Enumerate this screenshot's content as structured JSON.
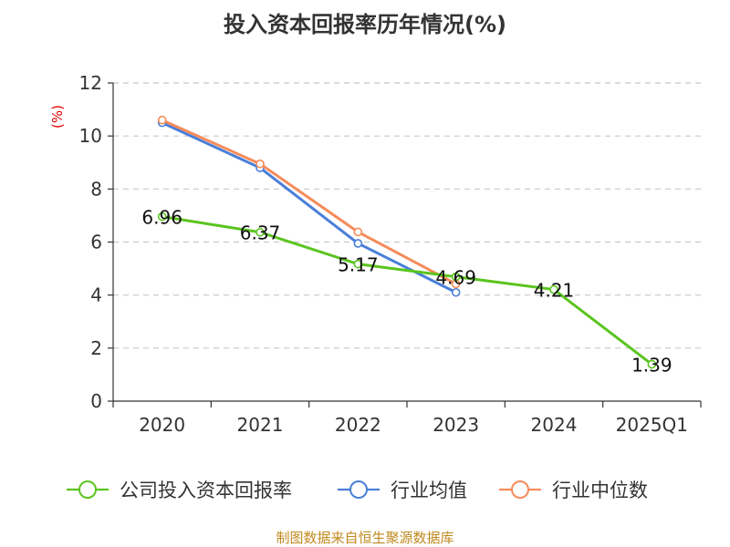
{
  "chart_data": {
    "type": "line",
    "title": "投入资本回报率历年情况(%)",
    "ylabel": "(%)",
    "categories": [
      "2020",
      "2021",
      "2022",
      "2023",
      "2024",
      "2025Q1"
    ],
    "ylim": [
      0,
      12
    ],
    "yticks": [
      0,
      2,
      4,
      6,
      8,
      10,
      12
    ],
    "grid": true,
    "legend_position": "bottom",
    "series": [
      {
        "name": "公司投入资本回报率",
        "color": "#5bc41f",
        "values": [
          6.96,
          6.37,
          5.17,
          4.69,
          4.21,
          1.39
        ],
        "labels": [
          "6.96",
          "6.37",
          "5.17",
          "4.69",
          "4.21",
          "1.39"
        ]
      },
      {
        "name": "行业均值",
        "color": "#4a7fd8",
        "values": [
          10.5,
          8.8,
          5.95,
          4.1,
          null,
          null
        ]
      },
      {
        "name": "行业中位数",
        "color": "#f58c5a",
        "values": [
          10.6,
          8.95,
          6.38,
          4.42,
          null,
          null
        ]
      }
    ]
  },
  "source": "制图数据来自恒生聚源数据库"
}
